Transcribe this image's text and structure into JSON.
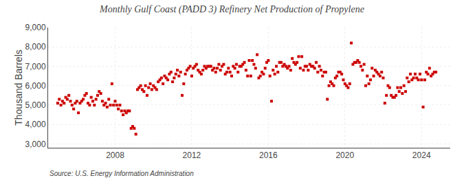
{
  "chart_data": {
    "type": "scatter",
    "title": "Monthly Gulf Coast (PADD 3) Refinery Net Production of Propylene",
    "ylabel": "Thousand Barrels",
    "annotations": [
      "Source: U.S. Energy Information Administration"
    ],
    "color": "#cc0000",
    "marker": "square",
    "grid": true,
    "xlim": [
      2004.5,
      2025.5
    ],
    "xticks": [
      2008,
      2012,
      2016,
      2020,
      2024
    ],
    "ylim": [
      2800,
      9000
    ],
    "yticks": [
      {
        "value": 3000,
        "label": "3,000"
      },
      {
        "value": 4000,
        "label": "4,000"
      },
      {
        "value": 5000,
        "label": "5,000"
      },
      {
        "value": 6000,
        "label": "6,000"
      },
      {
        "value": 7000,
        "label": "7,000"
      },
      {
        "value": 8000,
        "label": "8,000"
      },
      {
        "value": 9000,
        "label": "9,000"
      }
    ],
    "x": [
      2005.0,
      2005.083,
      2005.167,
      2005.25,
      2005.333,
      2005.417,
      2005.5,
      2005.583,
      2005.667,
      2005.75,
      2005.833,
      2005.917,
      2006.0,
      2006.083,
      2006.167,
      2006.25,
      2006.333,
      2006.417,
      2006.5,
      2006.583,
      2006.667,
      2006.75,
      2006.833,
      2006.917,
      2007.0,
      2007.083,
      2007.167,
      2007.25,
      2007.333,
      2007.417,
      2007.5,
      2007.583,
      2007.667,
      2007.75,
      2007.833,
      2007.917,
      2008.0,
      2008.083,
      2008.167,
      2008.25,
      2008.333,
      2008.417,
      2008.5,
      2008.583,
      2008.667,
      2008.75,
      2008.833,
      2008.917,
      2009.0,
      2009.083,
      2009.167,
      2009.25,
      2009.333,
      2009.417,
      2009.5,
      2009.583,
      2009.667,
      2009.75,
      2009.833,
      2009.917,
      2010.0,
      2010.083,
      2010.167,
      2010.25,
      2010.333,
      2010.417,
      2010.5,
      2010.583,
      2010.667,
      2010.75,
      2010.833,
      2010.917,
      2011.0,
      2011.083,
      2011.167,
      2011.25,
      2011.333,
      2011.417,
      2011.5,
      2011.583,
      2011.667,
      2011.75,
      2011.833,
      2011.917,
      2012.0,
      2012.083,
      2012.167,
      2012.25,
      2012.333,
      2012.417,
      2012.5,
      2012.583,
      2012.667,
      2012.75,
      2012.833,
      2012.917,
      2013.0,
      2013.083,
      2013.167,
      2013.25,
      2013.333,
      2013.417,
      2013.5,
      2013.583,
      2013.667,
      2013.75,
      2013.833,
      2013.917,
      2014.0,
      2014.083,
      2014.167,
      2014.25,
      2014.333,
      2014.417,
      2014.5,
      2014.583,
      2014.667,
      2014.75,
      2014.833,
      2014.917,
      2015.0,
      2015.083,
      2015.167,
      2015.25,
      2015.333,
      2015.417,
      2015.5,
      2015.583,
      2015.667,
      2015.75,
      2015.833,
      2015.917,
      2016.0,
      2016.083,
      2016.167,
      2016.25,
      2016.333,
      2016.417,
      2016.5,
      2016.583,
      2016.667,
      2016.75,
      2016.833,
      2016.917,
      2017.0,
      2017.083,
      2017.167,
      2017.25,
      2017.333,
      2017.417,
      2017.5,
      2017.583,
      2017.667,
      2017.75,
      2017.833,
      2017.917,
      2018.0,
      2018.083,
      2018.167,
      2018.25,
      2018.333,
      2018.417,
      2018.5,
      2018.583,
      2018.667,
      2018.75,
      2018.833,
      2018.917,
      2019.0,
      2019.083,
      2019.167,
      2019.25,
      2019.333,
      2019.417,
      2019.5,
      2019.583,
      2019.667,
      2019.75,
      2019.833,
      2019.917,
      2020.0,
      2020.083,
      2020.167,
      2020.25,
      2020.333,
      2020.417,
      2020.5,
      2020.583,
      2020.667,
      2020.75,
      2020.833,
      2020.917,
      2021.0,
      2021.083,
      2021.167,
      2021.25,
      2021.333,
      2021.417,
      2021.5,
      2021.583,
      2021.667,
      2021.75,
      2021.833,
      2021.917,
      2022.0,
      2022.083,
      2022.167,
      2022.25,
      2022.333,
      2022.417,
      2022.5,
      2022.583,
      2022.667,
      2022.75,
      2022.833,
      2022.917,
      2023.0,
      2023.083,
      2023.167,
      2023.25,
      2023.333,
      2023.417,
      2023.5,
      2023.583,
      2023.667,
      2023.75,
      2023.833,
      2023.917,
      2024.0,
      2024.083,
      2024.167,
      2024.25,
      2024.333,
      2024.417,
      2024.5,
      2024.583,
      2024.667,
      2024.75
    ],
    "values": [
      5100,
      5300,
      5000,
      5200,
      5100,
      5400,
      5300,
      5500,
      5200,
      5000,
      4800,
      5100,
      5200,
      4600,
      5100,
      5200,
      5300,
      5500,
      5600,
      5100,
      5000,
      5400,
      5200,
      5000,
      5300,
      5500,
      5700,
      5600,
      5200,
      5000,
      5100,
      4900,
      5300,
      5000,
      6100,
      5000,
      5200,
      5000,
      4800,
      5000,
      4700,
      4500,
      4700,
      4600,
      4700,
      4700,
      3800,
      3900,
      3800,
      3500,
      5800,
      5900,
      6000,
      5800,
      5700,
      6000,
      5500,
      5900,
      6100,
      5800,
      6000,
      5900,
      5800,
      6200,
      6300,
      6400,
      6100,
      6500,
      6400,
      6300,
      6600,
      6700,
      6200,
      6400,
      6600,
      6800,
      6500,
      6700,
      5500,
      6100,
      6600,
      6800,
      6900,
      7000,
      6500,
      6900,
      7000,
      7100,
      6800,
      6700,
      6600,
      6800,
      7000,
      6900,
      7000,
      7000,
      7000,
      6800,
      6900,
      6700,
      6900,
      7100,
      6800,
      7000,
      7100,
      6600,
      6700,
      6900,
      6700,
      6500,
      7000,
      6900,
      7100,
      6700,
      7000,
      7000,
      7100,
      7200,
      6800,
      6500,
      7300,
      6500,
      7300,
      7100,
      6900,
      7600,
      6400,
      6500,
      6700,
      6600,
      6900,
      7200,
      7300,
      6500,
      5200,
      6800,
      6600,
      7000,
      6700,
      7200,
      7200,
      7000,
      7100,
      7000,
      6900,
      7000,
      6800,
      7400,
      7200,
      7100,
      7200,
      7500,
      6900,
      7500,
      6800,
      7000,
      7000,
      6800,
      7100,
      7000,
      7000,
      6900,
      7200,
      6700,
      7000,
      6800,
      6500,
      6700,
      6700,
      5300,
      6000,
      6200,
      6100,
      6000,
      6400,
      6500,
      6700,
      6700,
      6600,
      6300,
      6100,
      6000,
      5900,
      6100,
      8200,
      7100,
      7200,
      7200,
      7300,
      7200,
      7000,
      6800,
      7100,
      6000,
      6500,
      6100,
      6300,
      6900,
      6500,
      6800,
      6700,
      6600,
      6500,
      6700,
      6400,
      5100,
      5500,
      6000,
      5900,
      5500,
      5400,
      5400,
      5500,
      5900,
      5700,
      5900,
      5600,
      6000,
      5700,
      6400,
      6200,
      6600,
      6300,
      6400,
      6600,
      6400,
      6300,
      6600,
      6300,
      4900,
      6300,
      6700,
      6600,
      6900,
      6500,
      6600,
      6700,
      6700
    ]
  }
}
